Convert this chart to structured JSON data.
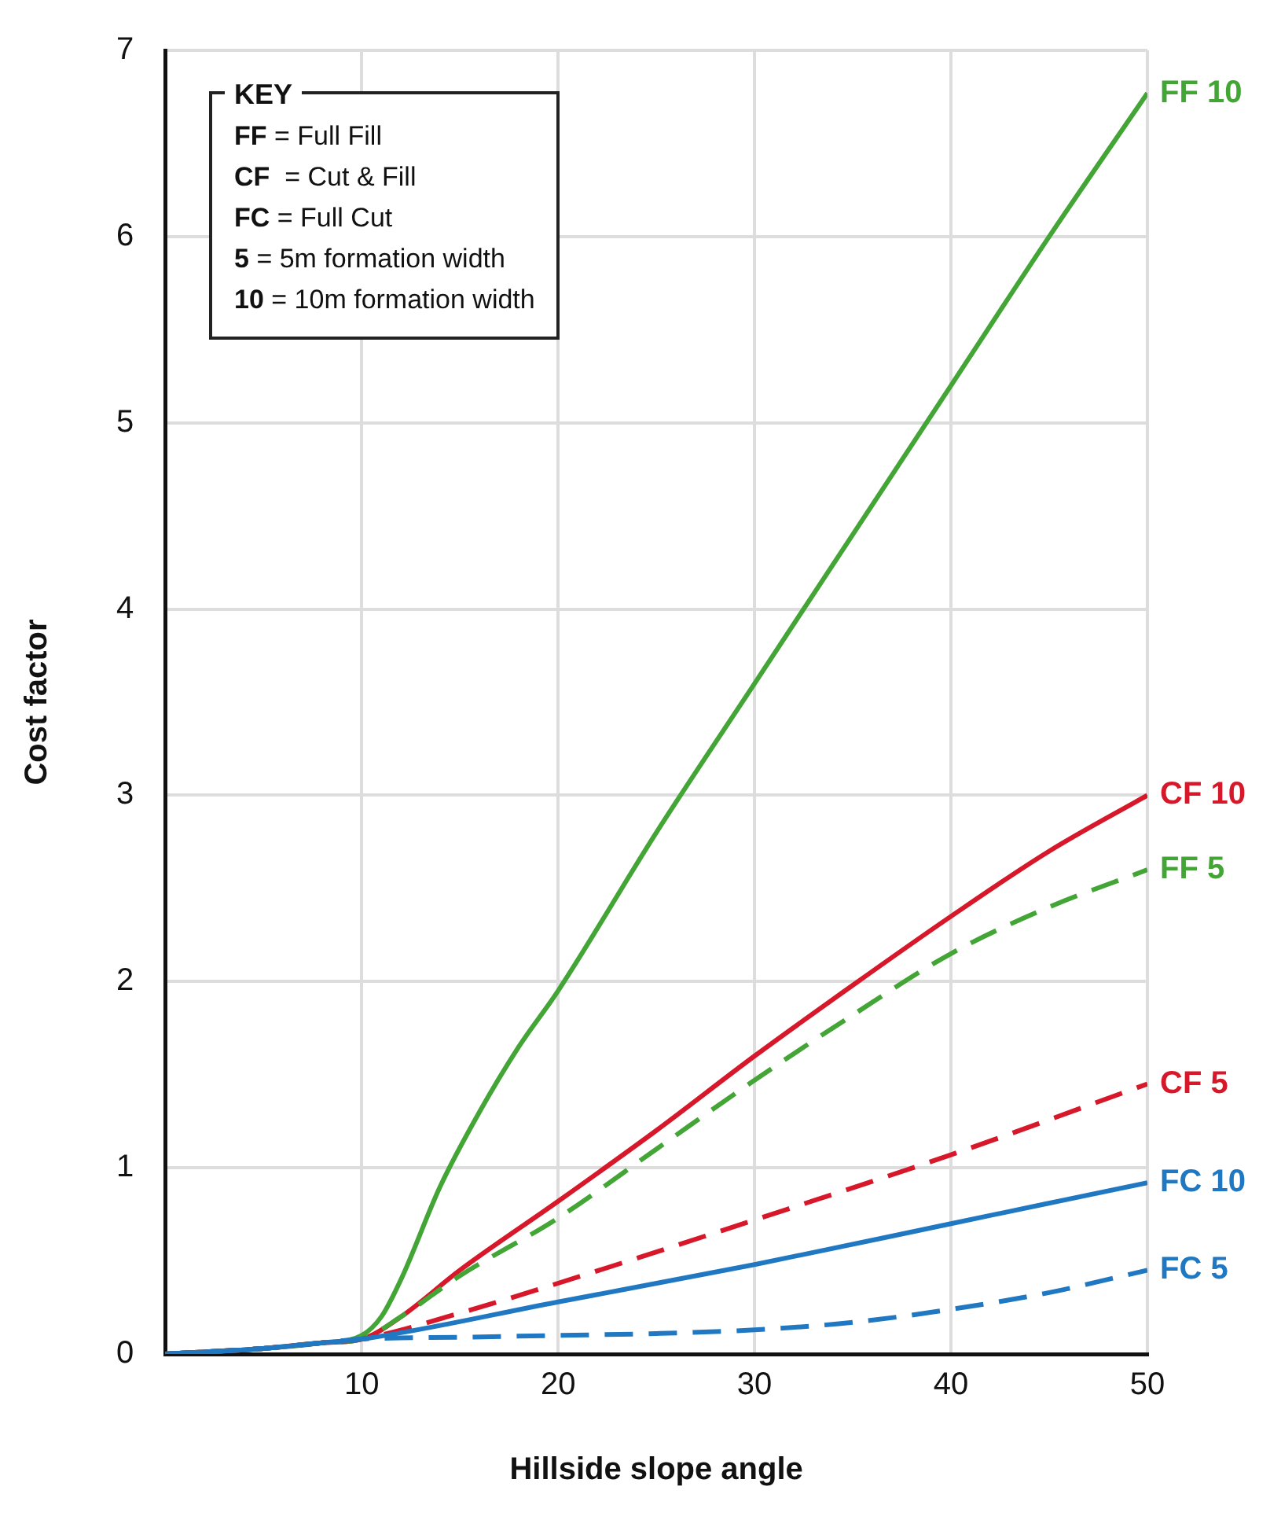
{
  "chart_data": {
    "type": "line",
    "xlabel": "Hillside slope angle",
    "ylabel": "Cost factor",
    "xlim": [
      0,
      50
    ],
    "xticks": [
      {
        "value": 0,
        "label": null
      },
      10,
      20,
      30,
      40,
      50
    ],
    "ylim": [
      0,
      7
    ],
    "yticks": [
      0,
      1,
      2,
      3,
      4,
      5,
      6,
      7
    ],
    "grid": true,
    "legend": false,
    "marker": "none",
    "annotations": [
      "KEY",
      "FF = Full Fill",
      "CF  = Cut & Fill",
      "FC = Full Cut",
      "5 = 5m formation width",
      "10 = 10m formation width"
    ],
    "series": [
      {
        "name": "FC 5",
        "color": "#1f78c1",
        "line_style": "dashed",
        "x": [
          0,
          5,
          8,
          10,
          15,
          20,
          25,
          30,
          35,
          40,
          45,
          50
        ],
        "values": [
          0,
          0.03,
          0.06,
          0.08,
          0.09,
          0.1,
          0.11,
          0.13,
          0.17,
          0.24,
          0.33,
          0.45
        ]
      },
      {
        "name": "FC 10",
        "color": "#1f78c1",
        "line_style": "solid",
        "x": [
          0,
          5,
          8,
          10,
          20,
          30,
          40,
          50
        ],
        "values": [
          0,
          0.03,
          0.06,
          0.08,
          0.28,
          0.48,
          0.7,
          0.92
        ]
      },
      {
        "name": "CF 5",
        "color": "#d7182a",
        "line_style": "dashed",
        "x": [
          0,
          5,
          8,
          10,
          15,
          20,
          30,
          40,
          50
        ],
        "values": [
          0,
          0.03,
          0.06,
          0.08,
          0.22,
          0.38,
          0.72,
          1.07,
          1.45
        ]
      },
      {
        "name": "FF 5",
        "color": "#43a535",
        "line_style": "dashed",
        "x": [
          0,
          5,
          8,
          10,
          12,
          15,
          20,
          25,
          30,
          35,
          40,
          45,
          50
        ],
        "values": [
          0,
          0.03,
          0.06,
          0.08,
          0.2,
          0.42,
          0.73,
          1.1,
          1.47,
          1.82,
          2.15,
          2.4,
          2.6
        ]
      },
      {
        "name": "CF 10",
        "color": "#d7182a",
        "line_style": "solid",
        "x": [
          0,
          5,
          8,
          10,
          12,
          15,
          20,
          25,
          30,
          35,
          40,
          45,
          50
        ],
        "values": [
          0,
          0.03,
          0.06,
          0.08,
          0.2,
          0.45,
          0.82,
          1.2,
          1.6,
          1.98,
          2.35,
          2.7,
          3.0
        ]
      },
      {
        "name": "FF 10",
        "color": "#43a535",
        "line_style": "solid",
        "x": [
          0,
          5,
          8,
          10,
          11,
          12,
          14,
          16,
          18,
          20,
          25,
          30,
          35,
          40,
          45,
          50
        ],
        "values": [
          0,
          0.03,
          0.06,
          0.1,
          0.2,
          0.4,
          0.9,
          1.3,
          1.65,
          1.95,
          2.8,
          3.6,
          4.4,
          5.2,
          6.0,
          6.77
        ]
      }
    ]
  }
}
